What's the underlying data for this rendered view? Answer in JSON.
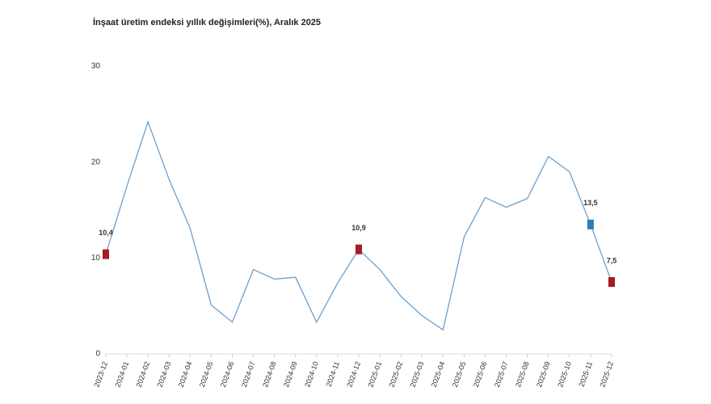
{
  "chart_data": {
    "type": "line",
    "title": "İnşaat üretim endeksi yıllık değişimleri(%), Aralık 2025",
    "categories": [
      "2023-12",
      "2024-01",
      "2024-02",
      "2024-03",
      "2024-04",
      "2024-05",
      "2024-06",
      "2024-07",
      "2024-08",
      "2024-09",
      "2024-10",
      "2024-11",
      "2024-12",
      "2025-01",
      "2025-02",
      "2025-03",
      "2025-04",
      "2025-05",
      "2025-06",
      "2025-07",
      "2025-08",
      "2025-09",
      "2025-10",
      "2025-11",
      "2025-12"
    ],
    "series": [
      {
        "color": "#6a9fd0",
        "values": [
          10.4,
          17.5,
          24.2,
          18.2,
          13.1,
          5.1,
          3.3,
          8.8,
          7.8,
          8.0,
          3.3,
          7.4,
          10.9,
          8.8,
          6.0,
          4.0,
          2.5,
          12.2,
          16.3,
          15.3,
          16.2,
          20.6,
          19.0,
          13.5,
          7.5
        ],
        "value_labels": [
          "10,4",
          null,
          null,
          null,
          null,
          null,
          null,
          null,
          null,
          null,
          null,
          null,
          "10,9",
          null,
          null,
          null,
          null,
          null,
          null,
          null,
          null,
          null,
          null,
          "13,5",
          "7,5"
        ],
        "marker_colors": [
          "#a51c24",
          null,
          null,
          null,
          null,
          null,
          null,
          null,
          null,
          null,
          null,
          null,
          "#a51c24",
          null,
          null,
          null,
          null,
          null,
          null,
          null,
          null,
          null,
          null,
          "#2e7fb0",
          "#a51c24"
        ]
      }
    ],
    "ylim": [
      0,
      30
    ],
    "yticks": [
      0,
      10,
      20,
      30
    ],
    "grid": false
  }
}
